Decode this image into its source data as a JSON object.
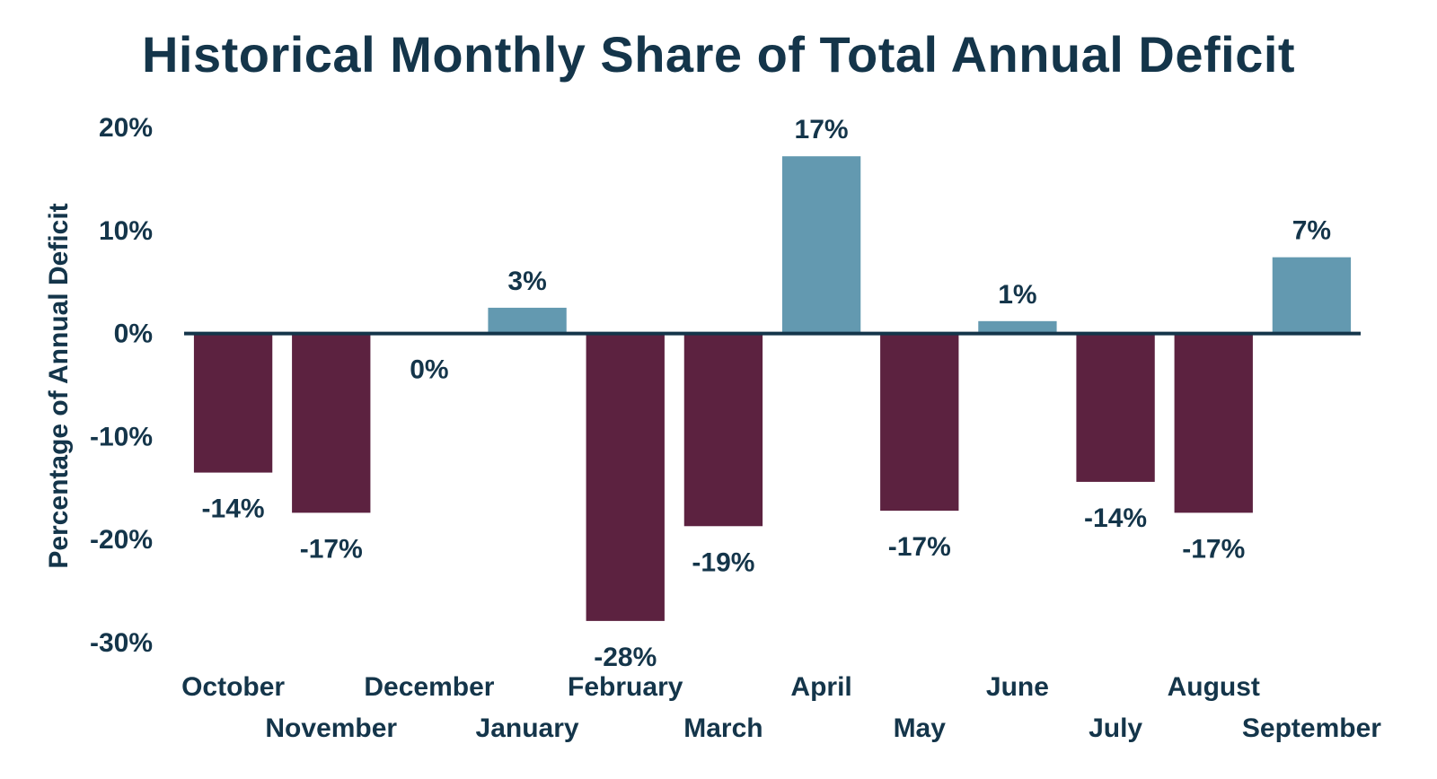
{
  "chart_data": {
    "type": "bar",
    "title": "Historical Monthly Share of Total Annual Deficit",
    "ylabel": "Percentage of Annual  Deficit",
    "xlabel": "",
    "ylim": [
      -30,
      20
    ],
    "yticks": [
      20,
      10,
      0,
      -10,
      -20,
      -30
    ],
    "ytick_labels": [
      "20%",
      "10%",
      "0%",
      "-10%",
      "-20%",
      "-30%"
    ],
    "grid": false,
    "legend": "none",
    "categories": [
      "October",
      "November",
      "December",
      "January",
      "February",
      "March",
      "April",
      "May",
      "June",
      "July",
      "August",
      "September"
    ],
    "values": [
      -13.5,
      -17.4,
      0,
      2.5,
      -27.9,
      -18.7,
      17.2,
      -17.2,
      1.2,
      -14.4,
      -17.4,
      7.4
    ],
    "data_labels": [
      "-14%",
      "-17%",
      "0%",
      "3%",
      "-28%",
      "-19%",
      "17%",
      "-17%",
      "1%",
      "-14%",
      "-17%",
      "7%"
    ],
    "colors": {
      "positive": "#6399b0",
      "negative": "#5c2240",
      "text": "#14354a",
      "axis": "#14354a"
    }
  }
}
